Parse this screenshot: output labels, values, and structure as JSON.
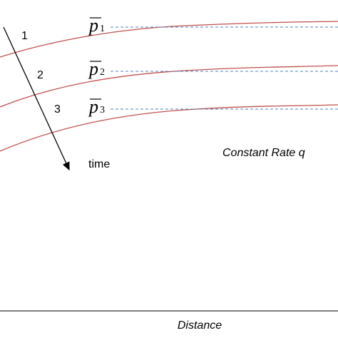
{
  "curves": [
    {
      "label": "1",
      "pressure": {
        "symbol": "p",
        "subscript": "1"
      }
    },
    {
      "label": "2",
      "pressure": {
        "symbol": "p",
        "subscript": "2"
      }
    },
    {
      "label": "3",
      "pressure": {
        "symbol": "p",
        "subscript": "3"
      }
    }
  ],
  "arrow_label": "time",
  "annotation": "Constant Rate q",
  "x_axis_label": "Distance"
}
